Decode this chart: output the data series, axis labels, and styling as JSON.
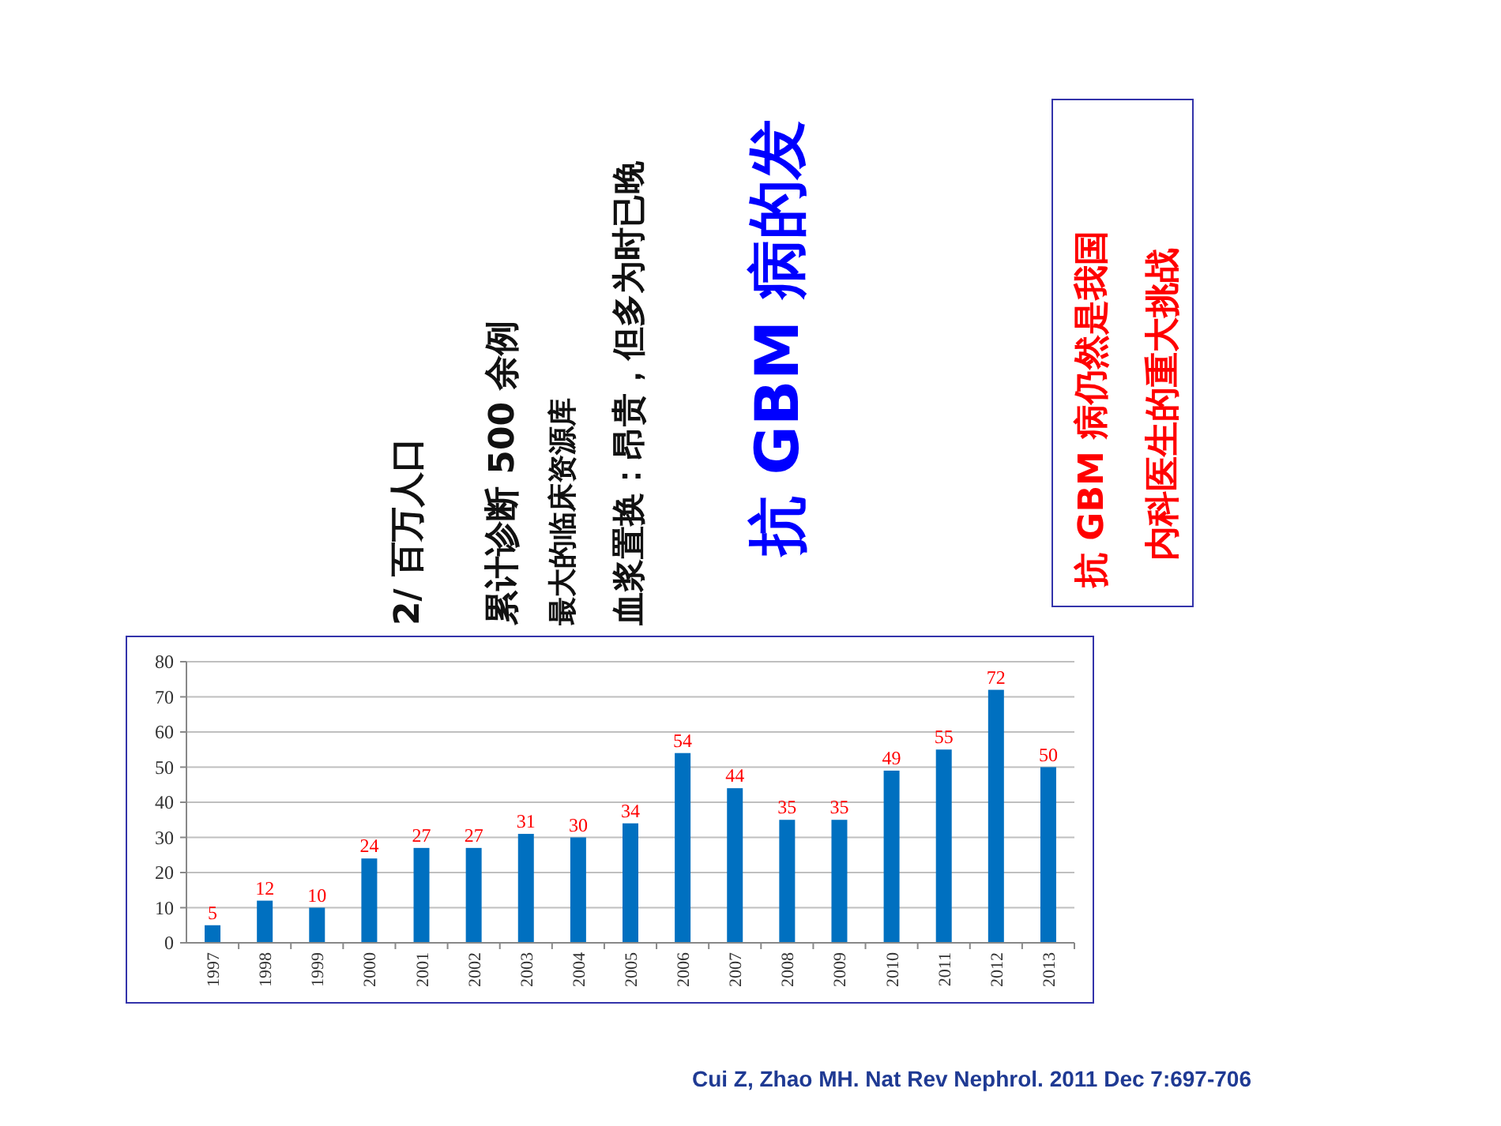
{
  "chart_data": {
    "type": "bar",
    "categories": [
      "1997",
      "1998",
      "1999",
      "2000",
      "2001",
      "2002",
      "2003",
      "2004",
      "2005",
      "2006",
      "2007",
      "2008",
      "2009",
      "2010",
      "2011",
      "2012",
      "2013"
    ],
    "values": [
      5,
      12,
      10,
      24,
      27,
      27,
      31,
      30,
      34,
      54,
      44,
      35,
      35,
      49,
      55,
      72,
      50
    ],
    "color": "#0070c0",
    "ylim": [
      0,
      80
    ],
    "yticks": [
      0,
      10,
      20,
      30,
      40,
      50,
      60,
      70,
      80
    ],
    "grid": "y",
    "data_labels": true,
    "annotations": [
      "抗 GBM 病的发",
      "2/ 百万人口",
      "累计诊断 500 余例",
      "最大的临床资源库",
      "血浆置换：昂贵，但多为时已晚",
      "抗 GBM 病仍然是我国",
      "内科医生的重大挑战",
      "Cui Z, Zhao MH. Nat Rev Nephrol. 2011 Dec 7:697-706"
    ]
  }
}
